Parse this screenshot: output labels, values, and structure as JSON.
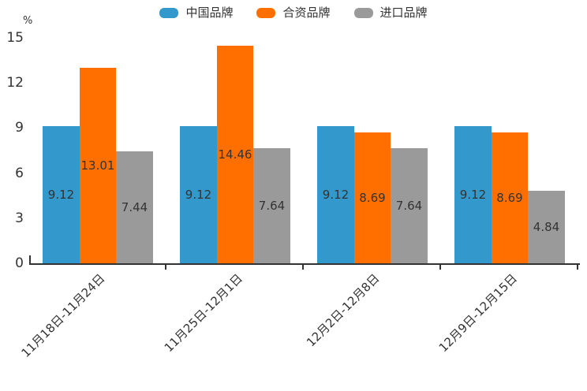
{
  "chart_data": {
    "type": "bar",
    "title": "",
    "ylabel": "%",
    "xlabel": "",
    "categories": [
      "11月18日-11月24日",
      "11月25日-12月1日",
      "12月2日-12月8日",
      "12月9日-12月15日"
    ],
    "series": [
      {
        "name": "中国品牌",
        "color": "#3398CB",
        "values": [
          9.12,
          9.12,
          9.12,
          9.12
        ]
      },
      {
        "name": "合资品牌",
        "color": "#FF6F00",
        "values": [
          13.01,
          14.46,
          8.69,
          8.69
        ]
      },
      {
        "name": "进口品牌",
        "color": "#9A9A9A",
        "values": [
          7.44,
          7.64,
          7.64,
          4.84
        ]
      }
    ],
    "value_labels": [
      [
        "9.12",
        "13.01",
        "7.44"
      ],
      [
        "9.12",
        "14.46",
        "7.64"
      ],
      [
        "9.12",
        "8.69",
        "7.64"
      ],
      [
        "9.12",
        "8.69",
        "4.84"
      ]
    ],
    "ylim": [
      0,
      15
    ],
    "yticks": [
      "0",
      "3",
      "6",
      "9",
      "12",
      "15"
    ],
    "legend_position": "top",
    "grid": false,
    "axis_color": "#333333",
    "text_color": "#333333"
  }
}
